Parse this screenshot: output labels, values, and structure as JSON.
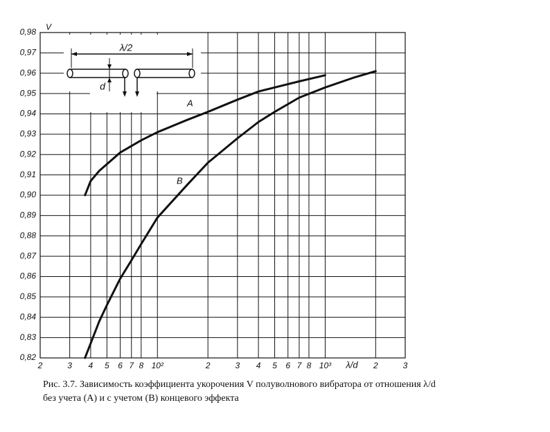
{
  "chart_data": {
    "type": "line",
    "ylabel": "V",
    "xlabel": "λ/d",
    "caption": [
      "Рис. 3.7. Зависимость коэффициента укорочения V полуволнового вибратора от отношения λ/d",
      "без учета (A) и с учетом (B) концевого эффекта"
    ],
    "annotations": [
      "λ/2",
      "d"
    ],
    "xscale": "log",
    "grid": true,
    "xlim": [
      20,
      3000
    ],
    "xticks": [
      {
        "value": 20,
        "label": "2"
      },
      {
        "value": 30,
        "label": "3"
      },
      {
        "value": 40,
        "label": "4"
      },
      {
        "value": 50,
        "label": "5"
      },
      {
        "value": 60,
        "label": "6"
      },
      {
        "value": 70,
        "label": "7"
      },
      {
        "value": 80,
        "label": "8"
      },
      {
        "value": 100,
        "label": "10²"
      },
      {
        "value": 200,
        "label": "2"
      },
      {
        "value": 300,
        "label": "3"
      },
      {
        "value": 400,
        "label": "4"
      },
      {
        "value": 500,
        "label": "5"
      },
      {
        "value": 600,
        "label": "6"
      },
      {
        "value": 700,
        "label": "7"
      },
      {
        "value": 800,
        "label": "8"
      },
      {
        "value": 1000,
        "label": "10³"
      },
      {
        "value": 2000,
        "label": "2"
      },
      {
        "value": 3000,
        "label": "3"
      }
    ],
    "ylim": [
      0.82,
      0.98
    ],
    "yticks": [
      {
        "value": 0.82,
        "label": "0,82"
      },
      {
        "value": 0.83,
        "label": "0,83"
      },
      {
        "value": 0.84,
        "label": "0,84"
      },
      {
        "value": 0.85,
        "label": "0,85"
      },
      {
        "value": 0.86,
        "label": "0,86"
      },
      {
        "value": 0.87,
        "label": "0,87"
      },
      {
        "value": 0.88,
        "label": "0,88"
      },
      {
        "value": 0.89,
        "label": "0,89"
      },
      {
        "value": 0.9,
        "label": "0,90"
      },
      {
        "value": 0.91,
        "label": "0,91"
      },
      {
        "value": 0.92,
        "label": "0,92"
      },
      {
        "value": 0.93,
        "label": "0,93"
      },
      {
        "value": 0.94,
        "label": "0,94"
      },
      {
        "value": 0.95,
        "label": "0,95"
      },
      {
        "value": 0.96,
        "label": "0,96"
      },
      {
        "value": 0.97,
        "label": "0,97"
      },
      {
        "value": 0.98,
        "label": "0,98"
      }
    ],
    "series": [
      {
        "name": "A",
        "color": "#111111",
        "x": [
          37,
          40,
          45,
          60,
          80,
          100,
          150,
          200,
          300,
          400,
          500,
          700,
          1000
        ],
        "values": [
          0.9,
          0.907,
          0.912,
          0.921,
          0.927,
          0.931,
          0.937,
          0.941,
          0.947,
          0.951,
          0.953,
          0.956,
          0.959
        ]
      },
      {
        "name": "B",
        "color": "#111111",
        "x": [
          37,
          45,
          50,
          60,
          70,
          80,
          100,
          150,
          200,
          300,
          400,
          500,
          700,
          1000,
          1500,
          2000
        ],
        "values": [
          0.82,
          0.838,
          0.846,
          0.859,
          0.868,
          0.876,
          0.889,
          0.905,
          0.916,
          0.928,
          0.936,
          0.941,
          0.948,
          0.953,
          0.958,
          0.961
        ]
      }
    ]
  }
}
